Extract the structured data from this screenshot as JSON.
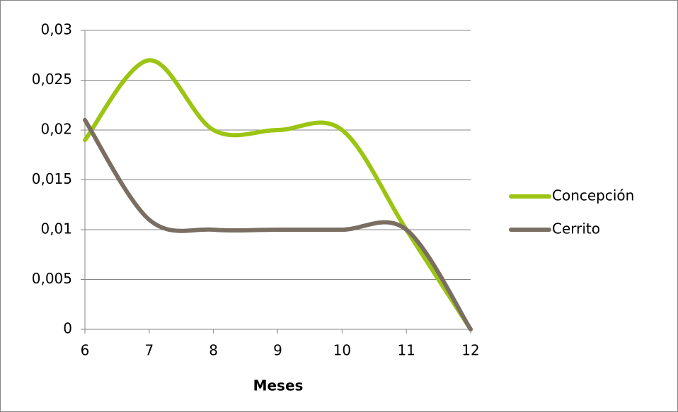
{
  "chart_data": {
    "type": "line",
    "x": [
      6,
      7,
      8,
      9,
      10,
      11,
      12
    ],
    "xlabel": "Meses",
    "series": [
      {
        "name": "Concepción",
        "color": "#9bc512",
        "values": [
          0.019,
          0.027,
          0.02,
          0.02,
          0.02,
          0.01,
          0
        ]
      },
      {
        "name": "Cerrito",
        "color": "#7a6e62",
        "values": [
          0.021,
          0.011,
          0.01,
          0.01,
          0.01,
          0.01,
          0
        ]
      }
    ],
    "xlim": [
      6,
      12
    ],
    "xticks": [
      6,
      7,
      8,
      9,
      10,
      11,
      12
    ],
    "ylim": [
      0,
      0.03
    ],
    "yticks": [
      0,
      {
        "value": 0.005,
        "label": "0,005"
      },
      {
        "value": 0.01,
        "label": "0,01"
      },
      {
        "value": 0.015,
        "label": "0,015"
      },
      {
        "value": 0.02,
        "label": "0,02"
      },
      {
        "value": 0.025,
        "label": "0,025"
      },
      {
        "value": 0.03,
        "label": "0,03"
      }
    ],
    "grid": true,
    "smooth": true,
    "legend": "right"
  }
}
